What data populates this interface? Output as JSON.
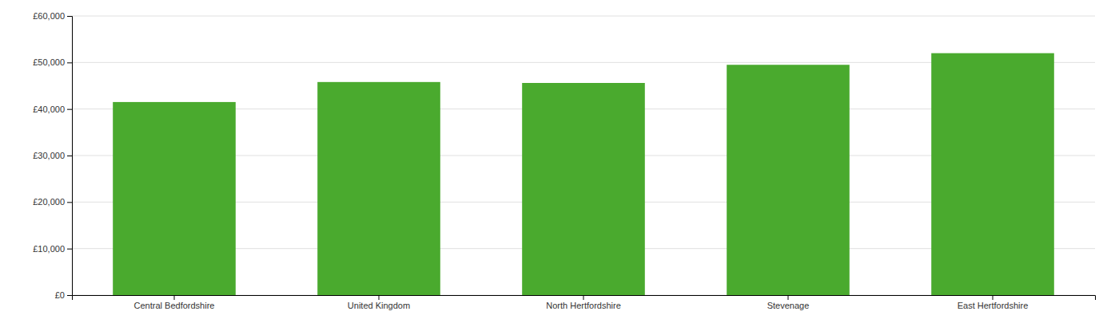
{
  "chart_data": {
    "type": "bar",
    "categories": [
      "Central Bedfordshire",
      "United Kingdom",
      "North Hertfordshire",
      "Stevenage",
      "East Hertfordshire"
    ],
    "values": [
      41500,
      45800,
      45600,
      49500,
      52000
    ],
    "color": "#4aaa2e",
    "ylim": [
      0,
      60000
    ],
    "yticks": [
      {
        "value": 0,
        "label": "£0"
      },
      {
        "value": 10000,
        "label": "£10,000"
      },
      {
        "value": 20000,
        "label": "£20,000"
      },
      {
        "value": 30000,
        "label": "£30,000"
      },
      {
        "value": 40000,
        "label": "£40,000"
      },
      {
        "value": 50000,
        "label": "£50,000"
      },
      {
        "value": 60000,
        "label": "£60,000"
      }
    ],
    "grid": true
  }
}
